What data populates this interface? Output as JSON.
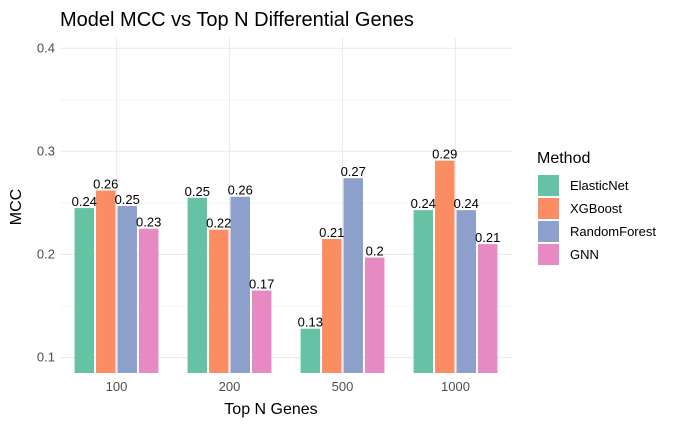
{
  "chart_data": {
    "type": "bar",
    "title": "Model MCC vs Top N Differential Genes",
    "xlabel": "Top N Genes",
    "ylabel": "MCC",
    "categories": [
      "100",
      "200",
      "500",
      "1000"
    ],
    "ylim": [
      0.085,
      0.41
    ],
    "bar_base": 0.085,
    "yticks": [
      0.1,
      0.2,
      0.3,
      0.4
    ],
    "ytick_labels": [
      "0.1",
      "0.2",
      "0.3",
      "0.4"
    ],
    "series": [
      {
        "name": "ElasticNet",
        "color": "#66C2A5",
        "values": [
          0.245,
          0.255,
          0.128,
          0.243
        ],
        "labels": [
          "0.24",
          "0.25",
          "0.13",
          "0.24"
        ]
      },
      {
        "name": "XGBoost",
        "color": "#FC8D62",
        "values": [
          0.262,
          0.224,
          0.215,
          0.291
        ],
        "labels": [
          "0.26",
          "0.22",
          "0.21",
          "0.29"
        ]
      },
      {
        "name": "RandomForest",
        "color": "#8DA0CB",
        "values": [
          0.247,
          0.256,
          0.274,
          0.243
        ],
        "labels": [
          "0.25",
          "0.26",
          "0.27",
          "0.24"
        ]
      },
      {
        "name": "GNN",
        "color": "#E78AC3",
        "values": [
          0.225,
          0.165,
          0.197,
          0.21
        ],
        "labels": [
          "0.23",
          "0.17",
          "0.2",
          "0.21"
        ]
      }
    ],
    "legend": {
      "title": "Method",
      "position": "right"
    },
    "grid": true
  }
}
